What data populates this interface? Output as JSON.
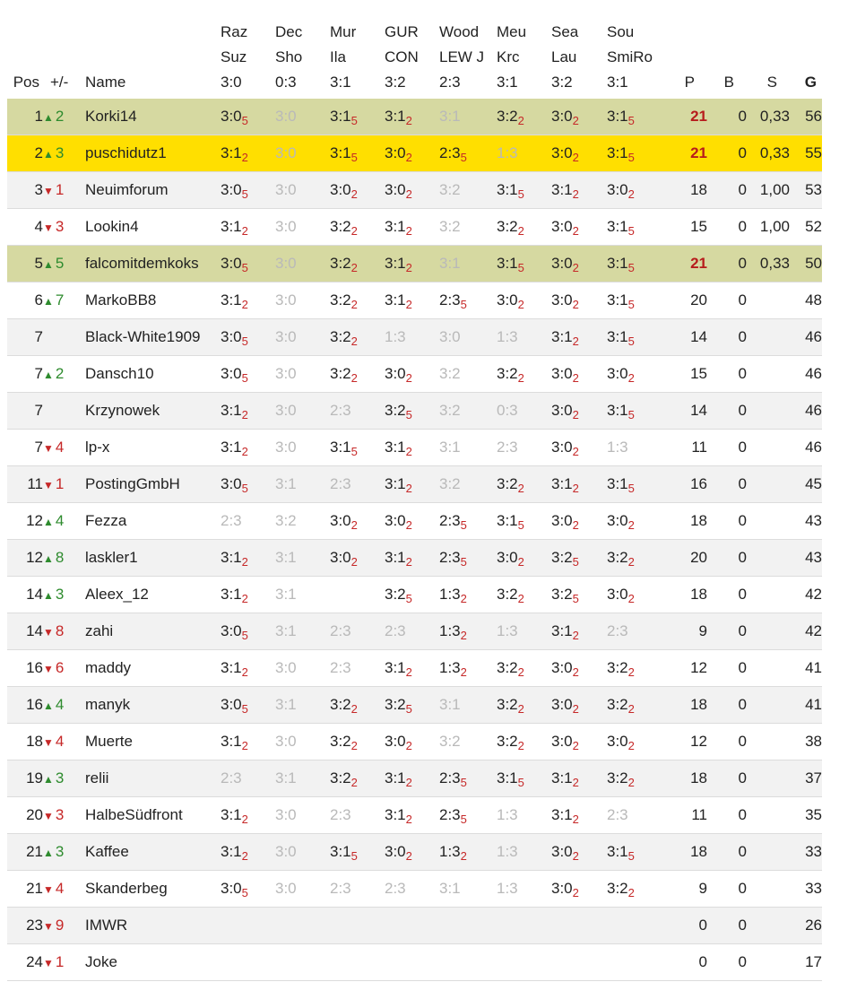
{
  "headers": {
    "pos": "Pos",
    "change": "+/-",
    "name": "Name",
    "matches": [
      {
        "l1": "Raz",
        "l2": "Suz",
        "l3": "3:0"
      },
      {
        "l1": "Dec",
        "l2": "Sho",
        "l3": "0:3"
      },
      {
        "l1": "Mur",
        "l2": "Ila",
        "l3": "3:1"
      },
      {
        "l1": "GUR",
        "l2": "CON",
        "l3": "3:2"
      },
      {
        "l1": "Wood",
        "l2": "LEW J",
        "l3": "2:3"
      },
      {
        "l1": "Meu",
        "l2": "Krc",
        "l3": "3:1"
      },
      {
        "l1": "Sea",
        "l2": "Lau",
        "l3": "3:2"
      },
      {
        "l1": "Sou",
        "l2": "SmiRo",
        "l3": "3:1"
      }
    ],
    "p": "P",
    "b": "B",
    "s": "S",
    "g": "G"
  },
  "colors": {
    "highlight_green": "#d6d9a1",
    "highlight_yellow": "#ffdf00",
    "up": "#2e8b2e",
    "down": "#c62828"
  },
  "rows": [
    {
      "pos": "1",
      "dir": "up",
      "chg": "2",
      "name": "Korki14",
      "hl": "green",
      "tips": [
        [
          "3:0",
          "5",
          0
        ],
        [
          "3:0",
          "",
          1
        ],
        [
          "3:1",
          "5",
          0
        ],
        [
          "3:1",
          "2",
          0
        ],
        [
          "3:1",
          "",
          1
        ],
        [
          "3:2",
          "2",
          0
        ],
        [
          "3:0",
          "2",
          0
        ],
        [
          "3:1",
          "5",
          0
        ]
      ],
      "p": "21",
      "pred": true,
      "b": "0",
      "s": "0,33",
      "g": "56"
    },
    {
      "pos": "2",
      "dir": "up",
      "chg": "3",
      "name": "puschidutz1",
      "hl": "yellow",
      "tips": [
        [
          "3:1",
          "2",
          0
        ],
        [
          "3:0",
          "",
          1
        ],
        [
          "3:1",
          "5",
          0
        ],
        [
          "3:0",
          "2",
          0
        ],
        [
          "2:3",
          "5",
          0
        ],
        [
          "1:3",
          "",
          1
        ],
        [
          "3:0",
          "2",
          0
        ],
        [
          "3:1",
          "5",
          0
        ]
      ],
      "p": "21",
      "pred": true,
      "b": "0",
      "s": "0,33",
      "g": "55"
    },
    {
      "pos": "3",
      "dir": "down",
      "chg": "1",
      "name": "Neuimforum",
      "hl": "",
      "tips": [
        [
          "3:0",
          "5",
          0
        ],
        [
          "3:0",
          "",
          1
        ],
        [
          "3:0",
          "2",
          0
        ],
        [
          "3:0",
          "2",
          0
        ],
        [
          "3:2",
          "",
          1
        ],
        [
          "3:1",
          "5",
          0
        ],
        [
          "3:1",
          "2",
          0
        ],
        [
          "3:0",
          "2",
          0
        ]
      ],
      "p": "18",
      "pred": false,
      "b": "0",
      "s": "1,00",
      "g": "53"
    },
    {
      "pos": "4",
      "dir": "down",
      "chg": "3",
      "name": "Lookin4",
      "hl": "",
      "tips": [
        [
          "3:1",
          "2",
          0
        ],
        [
          "3:0",
          "",
          1
        ],
        [
          "3:2",
          "2",
          0
        ],
        [
          "3:1",
          "2",
          0
        ],
        [
          "3:2",
          "",
          1
        ],
        [
          "3:2",
          "2",
          0
        ],
        [
          "3:0",
          "2",
          0
        ],
        [
          "3:1",
          "5",
          0
        ]
      ],
      "p": "15",
      "pred": false,
      "b": "0",
      "s": "1,00",
      "g": "52"
    },
    {
      "pos": "5",
      "dir": "up",
      "chg": "5",
      "name": "falcomitdemkoks",
      "hl": "green",
      "tips": [
        [
          "3:0",
          "5",
          0
        ],
        [
          "3:0",
          "",
          1
        ],
        [
          "3:2",
          "2",
          0
        ],
        [
          "3:1",
          "2",
          0
        ],
        [
          "3:1",
          "",
          1
        ],
        [
          "3:1",
          "5",
          0
        ],
        [
          "3:0",
          "2",
          0
        ],
        [
          "3:1",
          "5",
          0
        ]
      ],
      "p": "21",
      "pred": true,
      "b": "0",
      "s": "0,33",
      "g": "50"
    },
    {
      "pos": "6",
      "dir": "up",
      "chg": "7",
      "name": "MarkoBB8",
      "hl": "",
      "tips": [
        [
          "3:1",
          "2",
          0
        ],
        [
          "3:0",
          "",
          1
        ],
        [
          "3:2",
          "2",
          0
        ],
        [
          "3:1",
          "2",
          0
        ],
        [
          "2:3",
          "5",
          0
        ],
        [
          "3:0",
          "2",
          0
        ],
        [
          "3:0",
          "2",
          0
        ],
        [
          "3:1",
          "5",
          0
        ]
      ],
      "p": "20",
      "pred": false,
      "b": "0",
      "s": "",
      "g": "48"
    },
    {
      "pos": "7",
      "dir": "",
      "chg": "",
      "name": "Black-White1909",
      "hl": "",
      "tips": [
        [
          "3:0",
          "5",
          0
        ],
        [
          "3:0",
          "",
          1
        ],
        [
          "3:2",
          "2",
          0
        ],
        [
          "1:3",
          "",
          1
        ],
        [
          "3:0",
          "",
          1
        ],
        [
          "1:3",
          "",
          1
        ],
        [
          "3:1",
          "2",
          0
        ],
        [
          "3:1",
          "5",
          0
        ]
      ],
      "p": "14",
      "pred": false,
      "b": "0",
      "s": "",
      "g": "46"
    },
    {
      "pos": "7",
      "dir": "up",
      "chg": "2",
      "name": "Dansch10",
      "hl": "",
      "tips": [
        [
          "3:0",
          "5",
          0
        ],
        [
          "3:0",
          "",
          1
        ],
        [
          "3:2",
          "2",
          0
        ],
        [
          "3:0",
          "2",
          0
        ],
        [
          "3:2",
          "",
          1
        ],
        [
          "3:2",
          "2",
          0
        ],
        [
          "3:0",
          "2",
          0
        ],
        [
          "3:0",
          "2",
          0
        ]
      ],
      "p": "15",
      "pred": false,
      "b": "0",
      "s": "",
      "g": "46"
    },
    {
      "pos": "7",
      "dir": "",
      "chg": "",
      "name": "Krzynowek",
      "hl": "",
      "tips": [
        [
          "3:1",
          "2",
          0
        ],
        [
          "3:0",
          "",
          1
        ],
        [
          "2:3",
          "",
          1
        ],
        [
          "3:2",
          "5",
          0
        ],
        [
          "3:2",
          "",
          1
        ],
        [
          "0:3",
          "",
          1
        ],
        [
          "3:0",
          "2",
          0
        ],
        [
          "3:1",
          "5",
          0
        ]
      ],
      "p": "14",
      "pred": false,
      "b": "0",
      "s": "",
      "g": "46"
    },
    {
      "pos": "7",
      "dir": "down",
      "chg": "4",
      "name": "lp-x",
      "hl": "",
      "tips": [
        [
          "3:1",
          "2",
          0
        ],
        [
          "3:0",
          "",
          1
        ],
        [
          "3:1",
          "5",
          0
        ],
        [
          "3:1",
          "2",
          0
        ],
        [
          "3:1",
          "",
          1
        ],
        [
          "2:3",
          "",
          1
        ],
        [
          "3:0",
          "2",
          0
        ],
        [
          "1:3",
          "",
          1
        ]
      ],
      "p": "11",
      "pred": false,
      "b": "0",
      "s": "",
      "g": "46"
    },
    {
      "pos": "11",
      "dir": "down",
      "chg": "1",
      "name": "PostingGmbH",
      "hl": "",
      "tips": [
        [
          "3:0",
          "5",
          0
        ],
        [
          "3:1",
          "",
          1
        ],
        [
          "2:3",
          "",
          1
        ],
        [
          "3:1",
          "2",
          0
        ],
        [
          "3:2",
          "",
          1
        ],
        [
          "3:2",
          "2",
          0
        ],
        [
          "3:1",
          "2",
          0
        ],
        [
          "3:1",
          "5",
          0
        ]
      ],
      "p": "16",
      "pred": false,
      "b": "0",
      "s": "",
      "g": "45"
    },
    {
      "pos": "12",
      "dir": "up",
      "chg": "4",
      "name": "Fezza",
      "hl": "",
      "tips": [
        [
          "2:3",
          "",
          1
        ],
        [
          "3:2",
          "",
          1
        ],
        [
          "3:0",
          "2",
          0
        ],
        [
          "3:0",
          "2",
          0
        ],
        [
          "2:3",
          "5",
          0
        ],
        [
          "3:1",
          "5",
          0
        ],
        [
          "3:0",
          "2",
          0
        ],
        [
          "3:0",
          "2",
          0
        ]
      ],
      "p": "18",
      "pred": false,
      "b": "0",
      "s": "",
      "g": "43"
    },
    {
      "pos": "12",
      "dir": "up",
      "chg": "8",
      "name": "laskler1",
      "hl": "",
      "tips": [
        [
          "3:1",
          "2",
          0
        ],
        [
          "3:1",
          "",
          1
        ],
        [
          "3:0",
          "2",
          0
        ],
        [
          "3:1",
          "2",
          0
        ],
        [
          "2:3",
          "5",
          0
        ],
        [
          "3:0",
          "2",
          0
        ],
        [
          "3:2",
          "5",
          0
        ],
        [
          "3:2",
          "2",
          0
        ]
      ],
      "p": "20",
      "pred": false,
      "b": "0",
      "s": "",
      "g": "43"
    },
    {
      "pos": "14",
      "dir": "up",
      "chg": "3",
      "name": "Aleex_12",
      "hl": "",
      "tips": [
        [
          "3:1",
          "2",
          0
        ],
        [
          "3:1",
          "",
          1
        ],
        [
          "",
          "",
          0
        ],
        [
          "3:2",
          "5",
          0
        ],
        [
          "1:3",
          "2",
          0
        ],
        [
          "3:2",
          "2",
          0
        ],
        [
          "3:2",
          "5",
          0
        ],
        [
          "3:0",
          "2",
          0
        ]
      ],
      "p": "18",
      "pred": false,
      "b": "0",
      "s": "",
      "g": "42"
    },
    {
      "pos": "14",
      "dir": "down",
      "chg": "8",
      "name": "zahi",
      "hl": "",
      "tips": [
        [
          "3:0",
          "5",
          0
        ],
        [
          "3:1",
          "",
          1
        ],
        [
          "2:3",
          "",
          1
        ],
        [
          "2:3",
          "",
          1
        ],
        [
          "1:3",
          "2",
          0
        ],
        [
          "1:3",
          "",
          1
        ],
        [
          "3:1",
          "2",
          0
        ],
        [
          "2:3",
          "",
          1
        ]
      ],
      "p": "9",
      "pred": false,
      "b": "0",
      "s": "",
      "g": "42"
    },
    {
      "pos": "16",
      "dir": "down",
      "chg": "6",
      "name": "maddy",
      "hl": "",
      "tips": [
        [
          "3:1",
          "2",
          0
        ],
        [
          "3:0",
          "",
          1
        ],
        [
          "2:3",
          "",
          1
        ],
        [
          "3:1",
          "2",
          0
        ],
        [
          "1:3",
          "2",
          0
        ],
        [
          "3:2",
          "2",
          0
        ],
        [
          "3:0",
          "2",
          0
        ],
        [
          "3:2",
          "2",
          0
        ]
      ],
      "p": "12",
      "pred": false,
      "b": "0",
      "s": "",
      "g": "41"
    },
    {
      "pos": "16",
      "dir": "up",
      "chg": "4",
      "name": "manyk",
      "hl": "",
      "tips": [
        [
          "3:0",
          "5",
          0
        ],
        [
          "3:1",
          "",
          1
        ],
        [
          "3:2",
          "2",
          0
        ],
        [
          "3:2",
          "5",
          0
        ],
        [
          "3:1",
          "",
          1
        ],
        [
          "3:2",
          "2",
          0
        ],
        [
          "3:0",
          "2",
          0
        ],
        [
          "3:2",
          "2",
          0
        ]
      ],
      "p": "18",
      "pred": false,
      "b": "0",
      "s": "",
      "g": "41"
    },
    {
      "pos": "18",
      "dir": "down",
      "chg": "4",
      "name": "Muerte",
      "hl": "",
      "tips": [
        [
          "3:1",
          "2",
          0
        ],
        [
          "3:0",
          "",
          1
        ],
        [
          "3:2",
          "2",
          0
        ],
        [
          "3:0",
          "2",
          0
        ],
        [
          "3:2",
          "",
          1
        ],
        [
          "3:2",
          "2",
          0
        ],
        [
          "3:0",
          "2",
          0
        ],
        [
          "3:0",
          "2",
          0
        ]
      ],
      "p": "12",
      "pred": false,
      "b": "0",
      "s": "",
      "g": "38"
    },
    {
      "pos": "19",
      "dir": "up",
      "chg": "3",
      "name": "relii",
      "hl": "",
      "tips": [
        [
          "2:3",
          "",
          1
        ],
        [
          "3:1",
          "",
          1
        ],
        [
          "3:2",
          "2",
          0
        ],
        [
          "3:1",
          "2",
          0
        ],
        [
          "2:3",
          "5",
          0
        ],
        [
          "3:1",
          "5",
          0
        ],
        [
          "3:1",
          "2",
          0
        ],
        [
          "3:2",
          "2",
          0
        ]
      ],
      "p": "18",
      "pred": false,
      "b": "0",
      "s": "",
      "g": "37"
    },
    {
      "pos": "20",
      "dir": "down",
      "chg": "3",
      "name": "HalbeSüdfront",
      "hl": "",
      "tips": [
        [
          "3:1",
          "2",
          0
        ],
        [
          "3:0",
          "",
          1
        ],
        [
          "2:3",
          "",
          1
        ],
        [
          "3:1",
          "2",
          0
        ],
        [
          "2:3",
          "5",
          0
        ],
        [
          "1:3",
          "",
          1
        ],
        [
          "3:1",
          "2",
          0
        ],
        [
          "2:3",
          "",
          1
        ]
      ],
      "p": "11",
      "pred": false,
      "b": "0",
      "s": "",
      "g": "35"
    },
    {
      "pos": "21",
      "dir": "up",
      "chg": "3",
      "name": "Kaffee",
      "hl": "",
      "tips": [
        [
          "3:1",
          "2",
          0
        ],
        [
          "3:0",
          "",
          1
        ],
        [
          "3:1",
          "5",
          0
        ],
        [
          "3:0",
          "2",
          0
        ],
        [
          "1:3",
          "2",
          0
        ],
        [
          "1:3",
          "",
          1
        ],
        [
          "3:0",
          "2",
          0
        ],
        [
          "3:1",
          "5",
          0
        ]
      ],
      "p": "18",
      "pred": false,
      "b": "0",
      "s": "",
      "g": "33"
    },
    {
      "pos": "21",
      "dir": "down",
      "chg": "4",
      "name": "Skanderbeg",
      "hl": "",
      "tips": [
        [
          "3:0",
          "5",
          0
        ],
        [
          "3:0",
          "",
          1
        ],
        [
          "2:3",
          "",
          1
        ],
        [
          "2:3",
          "",
          1
        ],
        [
          "3:1",
          "",
          1
        ],
        [
          "1:3",
          "",
          1
        ],
        [
          "3:0",
          "2",
          0
        ],
        [
          "3:2",
          "2",
          0
        ]
      ],
      "p": "9",
      "pred": false,
      "b": "0",
      "s": "",
      "g": "33"
    },
    {
      "pos": "23",
      "dir": "down",
      "chg": "9",
      "name": "IMWR",
      "hl": "",
      "tips": [
        [
          "",
          "",
          0
        ],
        [
          "",
          "",
          0
        ],
        [
          "",
          "",
          0
        ],
        [
          "",
          "",
          0
        ],
        [
          "",
          "",
          0
        ],
        [
          "",
          "",
          0
        ],
        [
          "",
          "",
          0
        ],
        [
          "",
          "",
          0
        ]
      ],
      "p": "0",
      "pred": false,
      "b": "0",
      "s": "",
      "g": "26"
    },
    {
      "pos": "24",
      "dir": "down",
      "chg": "1",
      "name": "Joke",
      "hl": "",
      "tips": [
        [
          "",
          "",
          0
        ],
        [
          "",
          "",
          0
        ],
        [
          "",
          "",
          0
        ],
        [
          "",
          "",
          0
        ],
        [
          "",
          "",
          0
        ],
        [
          "",
          "",
          0
        ],
        [
          "",
          "",
          0
        ],
        [
          "",
          "",
          0
        ]
      ],
      "p": "0",
      "pred": false,
      "b": "0",
      "s": "",
      "g": "17"
    }
  ]
}
